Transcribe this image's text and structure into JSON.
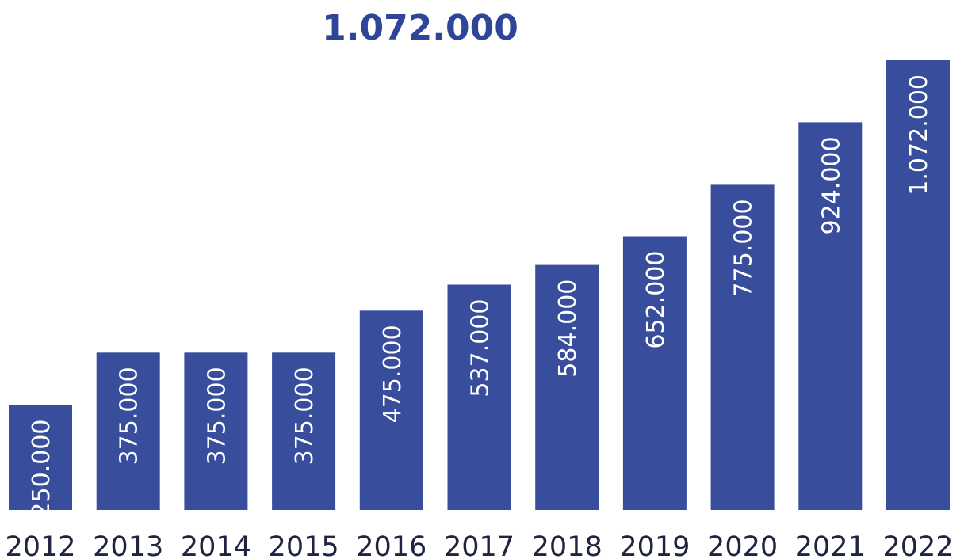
{
  "chart_data": {
    "type": "bar",
    "title": "1.072.000",
    "categories": [
      "2012",
      "2013",
      "2014",
      "2015",
      "2016",
      "2017",
      "2018",
      "2019",
      "2020",
      "2021",
      "2022"
    ],
    "values": [
      250000,
      375000,
      375000,
      375000,
      475000,
      537000,
      584000,
      652000,
      775000,
      924000,
      1072000
    ],
    "value_labels": [
      "250.000",
      "375.000",
      "375.000",
      "375.000",
      "475.000",
      "537.000",
      "584.000",
      "652.000",
      "775.000",
      "924.000",
      "1.072.000"
    ],
    "ylim": [
      0,
      1072000
    ],
    "bar_color": "#384e9c",
    "title_color": "#2f4598",
    "label_color": "#ffffff",
    "grid": false,
    "legend": "none"
  }
}
